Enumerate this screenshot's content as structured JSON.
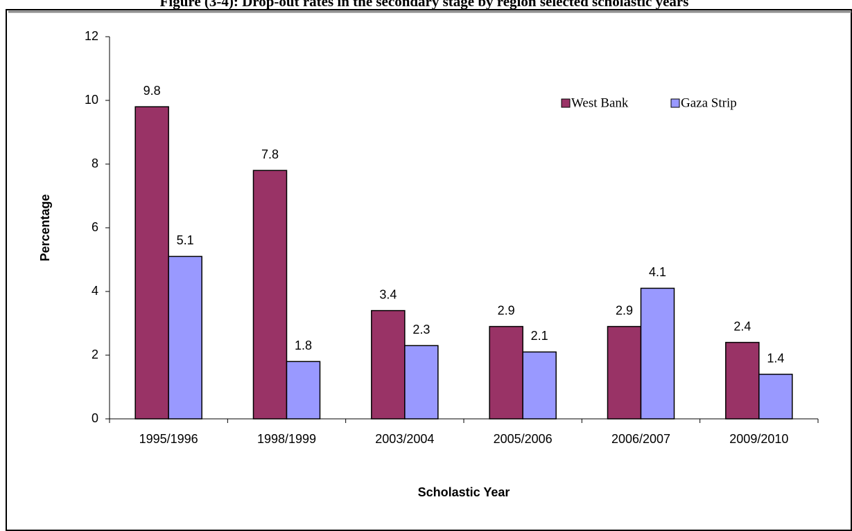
{
  "chart_data": {
    "type": "bar",
    "title": "Figure (3-4): Drop-out rates in the secondary stage by region selected scholastic years",
    "x_label": "Scholastic Year",
    "y_label": "Percentage",
    "categories": [
      "1995/1996",
      "1998/1999",
      "2003/2004",
      "2005/2006",
      "2006/2007",
      "2009/2010"
    ],
    "series": [
      {
        "name": "West Bank",
        "color": "#993366",
        "values": [
          9.8,
          7.8,
          3.4,
          2.9,
          2.9,
          2.4
        ]
      },
      {
        "name": "Gaza Strip",
        "color": "#9999ff",
        "values": [
          5.1,
          1.8,
          2.3,
          2.1,
          4.1,
          1.4
        ]
      }
    ],
    "ylim": [
      0,
      12
    ],
    "yticks": [
      0,
      2,
      4,
      6,
      8,
      10,
      12
    ],
    "legend": "top-right"
  }
}
